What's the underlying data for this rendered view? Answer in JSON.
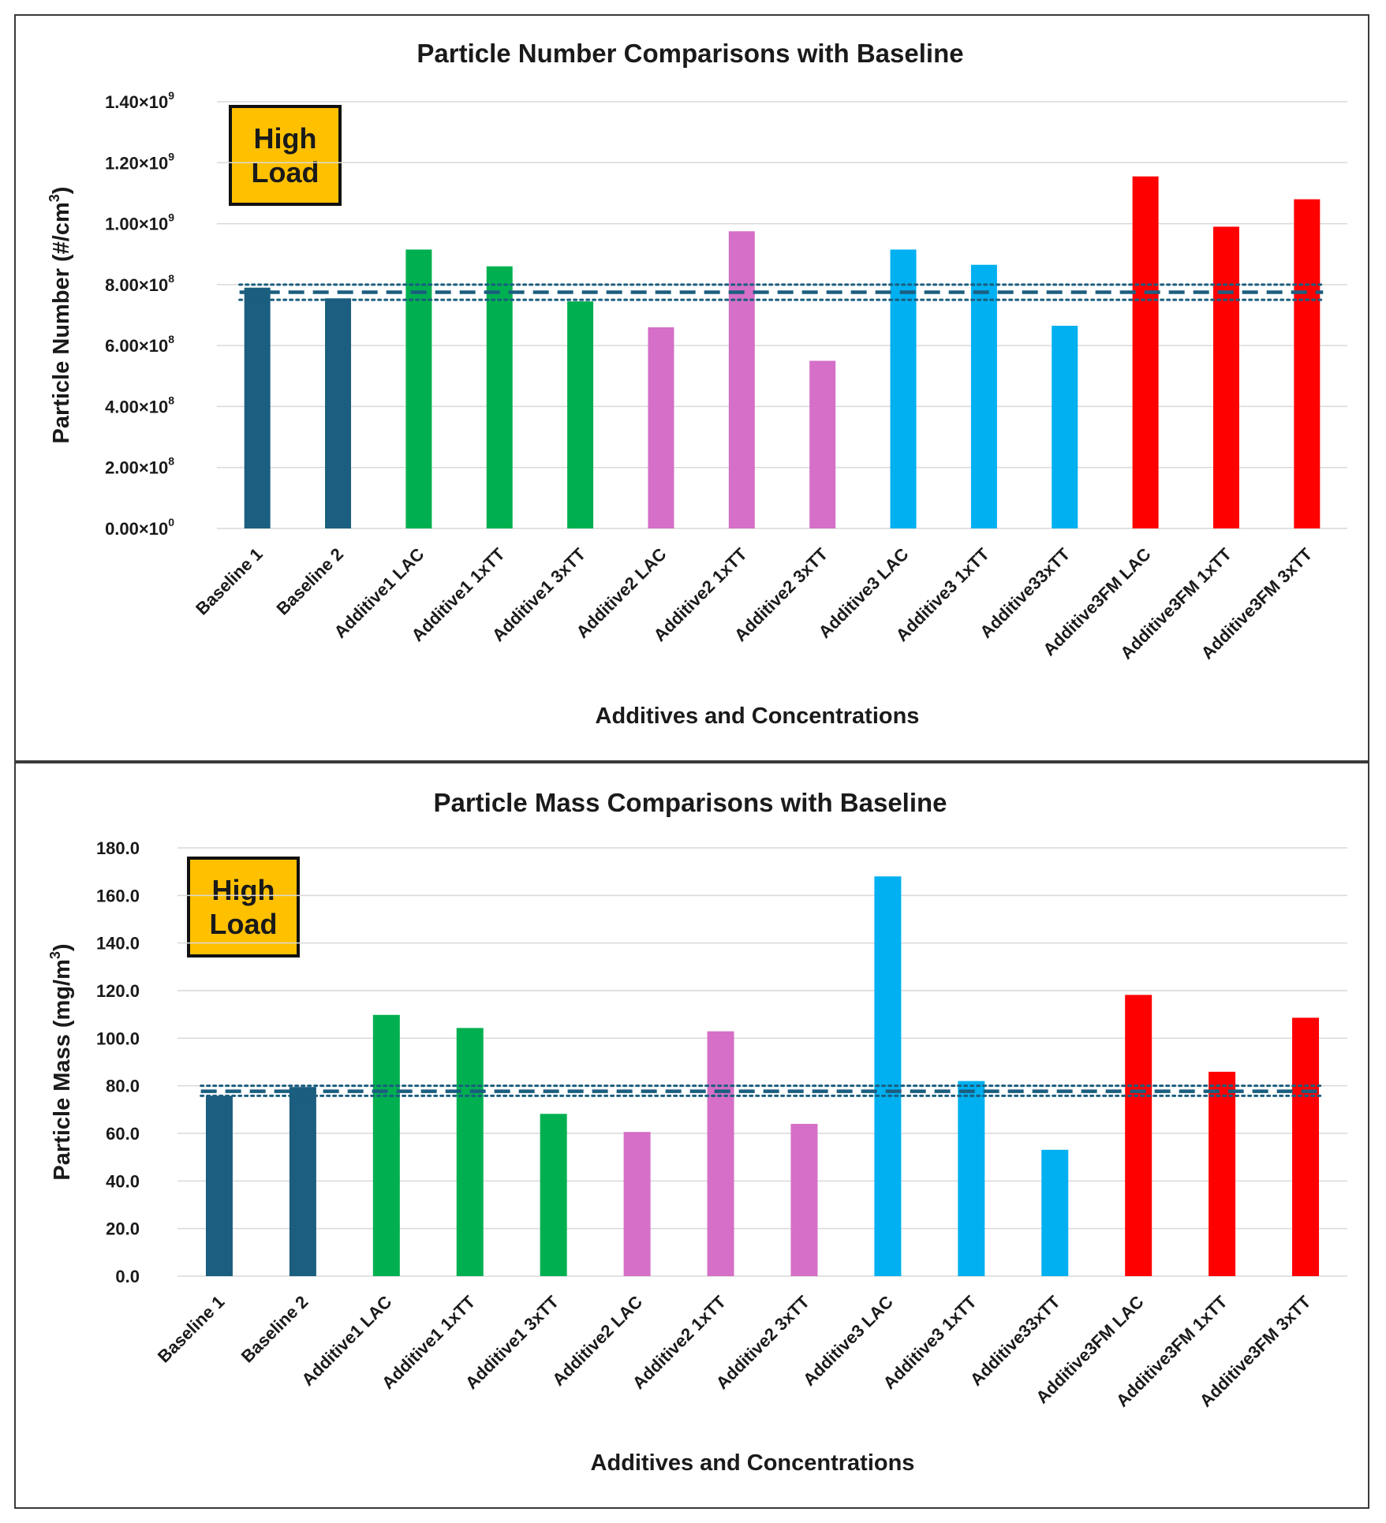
{
  "chart_data": [
    {
      "type": "bar",
      "title": "Particle Number Comparisons with Baseline",
      "xlabel": "Additives and Concentrations",
      "ylabel": "Particle Number (#/cm",
      "ylabel_sup": "3",
      "ylabel_tail": ")",
      "badge": [
        "High",
        "Load"
      ],
      "ylim": [
        0,
        1400000000.0
      ],
      "yticks": [
        {
          "value": 0,
          "mant": "0.00×10",
          "exp": "0"
        },
        {
          "value": 200000000.0,
          "mant": "2.00×10",
          "exp": "8"
        },
        {
          "value": 400000000.0,
          "mant": "4.00×10",
          "exp": "8"
        },
        {
          "value": 600000000.0,
          "mant": "6.00×10",
          "exp": "8"
        },
        {
          "value": 800000000.0,
          "mant": "8.00×10",
          "exp": "8"
        },
        {
          "value": 1000000000.0,
          "mant": "1.00×10",
          "exp": "9"
        },
        {
          "value": 1200000000.0,
          "mant": "1.20×10",
          "exp": "9"
        },
        {
          "value": 1400000000.0,
          "mant": "1.40×10",
          "exp": "9"
        }
      ],
      "categories": [
        "Baseline 1",
        "Baseline 2",
        "Additive1 LAC",
        "Additive1 1xTT",
        "Additive1 3xTT",
        "Additive2 LAC",
        "Additive2 1xTT",
        "Additive2 3xTT",
        "Additive3 LAC",
        "Additive3 1xTT",
        "Additive33xTT",
        "Additive3FM LAC",
        "Additive3FM 1xTT",
        "Additive3FM 3xTT"
      ],
      "values": [
        790000000.0,
        755000000.0,
        915000000.0,
        860000000.0,
        745000000.0,
        660000000.0,
        975000000.0,
        550000000.0,
        915000000.0,
        865000000.0,
        665000000.0,
        1155000000.0,
        990000000.0,
        1080000000.0
      ],
      "colors": [
        "#1b5e7f",
        "#1b5e7f",
        "#00b050",
        "#00b050",
        "#00b050",
        "#d56fc7",
        "#d56fc7",
        "#d56fc7",
        "#00b0f0",
        "#00b0f0",
        "#00b0f0",
        "#ff0000",
        "#ff0000",
        "#ff0000"
      ],
      "baseline_mean": 775000000.0,
      "baseline_band": [
        750000000.0,
        800000000.0
      ],
      "line_color": "#1b5e7f"
    },
    {
      "type": "bar",
      "title": "Particle Mass Comparisons with Baseline",
      "xlabel": "Additives and Concentrations",
      "ylabel": "Particle Mass (mg/m",
      "ylabel_sup": "3",
      "ylabel_tail": ")",
      "badge": [
        "High",
        "Load"
      ],
      "ylim": [
        0,
        180
      ],
      "yticks": [
        {
          "value": 0,
          "mant": "0.0",
          "exp": ""
        },
        {
          "value": 20,
          "mant": "20.0",
          "exp": ""
        },
        {
          "value": 40,
          "mant": "40.0",
          "exp": ""
        },
        {
          "value": 60,
          "mant": "60.0",
          "exp": ""
        },
        {
          "value": 80,
          "mant": "80.0",
          "exp": ""
        },
        {
          "value": 100,
          "mant": "100.0",
          "exp": ""
        },
        {
          "value": 120,
          "mant": "120.0",
          "exp": ""
        },
        {
          "value": 140,
          "mant": "140.0",
          "exp": ""
        },
        {
          "value": 160,
          "mant": "160.0",
          "exp": ""
        },
        {
          "value": 180,
          "mant": "180.0",
          "exp": ""
        }
      ],
      "categories": [
        "Baseline 1",
        "Baseline 2",
        "Additive1 LAC",
        "Additive1 1xTT",
        "Additive1 3xTT",
        "Additive2 LAC",
        "Additive2 1xTT",
        "Additive2 3xTT",
        "Additive3 LAC",
        "Additive3 1xTT",
        "Additive33xTT",
        "Additive3FM LAC",
        "Additive3FM 1xTT",
        "Additive3FM 3xTT"
      ],
      "values": [
        75.8,
        79.5,
        109.8,
        104.3,
        68.2,
        60.6,
        102.9,
        64.0,
        168.0,
        82.0,
        53.1,
        118.2,
        85.9,
        108.6
      ],
      "colors": [
        "#1b5e7f",
        "#1b5e7f",
        "#00b050",
        "#00b050",
        "#00b050",
        "#d56fc7",
        "#d56fc7",
        "#d56fc7",
        "#00b0f0",
        "#00b0f0",
        "#00b0f0",
        "#ff0000",
        "#ff0000",
        "#ff0000"
      ],
      "baseline_mean": 77.7,
      "baseline_band": [
        75.8,
        80.0
      ],
      "line_color": "#1b5e7f"
    }
  ]
}
